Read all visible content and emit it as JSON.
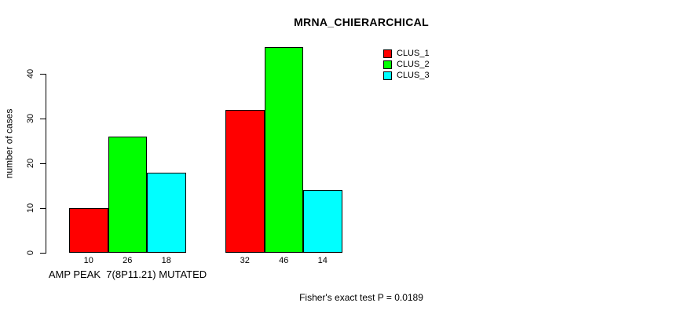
{
  "chart_data": {
    "type": "bar",
    "grouped": true,
    "title": "MRNA_CHIERARCHICAL",
    "ylabel": "number of cases",
    "xlabel": "",
    "ylim": [
      0,
      46
    ],
    "yticks": [
      0,
      10,
      20,
      30,
      40
    ],
    "grid": false,
    "legend_position": "top-right-inside",
    "bar_value_labels_shown": true,
    "categories": [
      "AMP PEAK  7(8P11.21) MUTATED",
      ""
    ],
    "series": [
      {
        "name": "CLUS_1",
        "color": "#ff0000",
        "values": [
          10,
          32
        ]
      },
      {
        "name": "CLUS_2",
        "color": "#00ff00",
        "values": [
          26,
          46
        ]
      },
      {
        "name": "CLUS_3",
        "color": "#00ffff",
        "values": [
          18,
          14
        ]
      }
    ],
    "groups": [
      {
        "label": "AMP PEAK  7(8P11.21) MUTATED",
        "values": [
          10,
          26,
          18
        ]
      },
      {
        "label": "",
        "values": [
          32,
          46,
          14
        ]
      }
    ],
    "annotation": "Fisher's exact test P = 0.0189"
  },
  "colors": {
    "background": "#ffffff",
    "axis": "#000000",
    "text": "#000000",
    "clus_1": "#ff0000",
    "clus_2": "#00ff00",
    "clus_3": "#00ffff"
  }
}
